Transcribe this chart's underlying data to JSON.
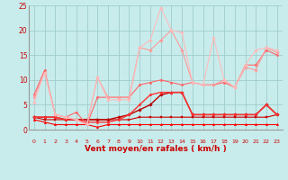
{
  "x": [
    0,
    1,
    2,
    3,
    4,
    5,
    6,
    7,
    8,
    9,
    10,
    11,
    12,
    13,
    14,
    15,
    16,
    17,
    18,
    19,
    20,
    21,
    22,
    23
  ],
  "series": [
    {
      "color": "#FF0000",
      "lw": 0.8,
      "marker": "^",
      "ms": 1.8,
      "values": [
        2,
        1.5,
        1,
        1,
        1,
        1,
        0.5,
        1,
        1,
        1,
        1,
        1,
        1,
        1,
        1,
        1,
        1,
        1,
        1,
        1,
        1,
        1,
        1,
        1
      ]
    },
    {
      "color": "#CC0000",
      "lw": 0.8,
      "marker": "s",
      "ms": 1.8,
      "values": [
        2.5,
        2,
        2,
        2,
        2,
        2,
        2,
        2,
        2,
        2,
        2.5,
        2.5,
        2.5,
        2.5,
        2.5,
        2.5,
        2.5,
        2.5,
        2.5,
        2.5,
        2.5,
        2.5,
        2.5,
        3
      ]
    },
    {
      "color": "#BB0000",
      "lw": 1.0,
      "marker": "D",
      "ms": 1.8,
      "values": [
        2.5,
        2.5,
        2.5,
        2,
        2,
        2,
        2,
        2,
        2.5,
        3,
        4,
        5,
        7,
        7.5,
        7.5,
        3,
        3,
        3,
        3,
        3,
        3,
        3,
        5,
        3
      ]
    },
    {
      "color": "#FF3333",
      "lw": 1.0,
      "marker": "o",
      "ms": 1.8,
      "values": [
        2.5,
        2.5,
        2.5,
        2,
        2,
        1.5,
        1.5,
        1.5,
        2,
        3,
        5,
        7,
        7.5,
        7.5,
        7.5,
        3,
        3,
        3,
        3,
        3,
        3,
        3,
        5,
        3
      ]
    },
    {
      "color": "#FF6666",
      "lw": 0.8,
      "marker": "o",
      "ms": 1.8,
      "values": [
        7,
        12,
        3,
        2.5,
        3.5,
        1,
        6.5,
        6.5,
        6.5,
        6.5,
        9,
        9.5,
        10,
        9.5,
        9,
        9.5,
        9,
        9,
        9.5,
        8.5,
        13,
        13,
        16,
        15
      ]
    },
    {
      "color": "#FF9999",
      "lw": 0.8,
      "marker": "D",
      "ms": 1.8,
      "values": [
        6.5,
        11.5,
        3,
        2.5,
        2,
        1,
        10.5,
        6.5,
        6.5,
        6.5,
        16.5,
        16,
        18,
        20,
        16,
        9.5,
        9,
        9,
        10,
        8.5,
        12.5,
        12,
        16.5,
        15.5
      ]
    },
    {
      "color": "#FFBBBB",
      "lw": 0.8,
      "marker": "D",
      "ms": 1.8,
      "values": [
        5.5,
        11.5,
        3,
        2.5,
        2,
        1,
        10.5,
        6,
        6,
        6,
        16.5,
        18,
        24.5,
        20,
        19.5,
        9.5,
        9,
        18.5,
        10,
        8.5,
        13,
        16,
        16.5,
        16
      ]
    }
  ],
  "xlabel": "Vent moyen/en rafales ( km/h )",
  "ylim": [
    0,
    25
  ],
  "xlim": [
    -0.5,
    23.5
  ],
  "yticks": [
    0,
    5,
    10,
    15,
    20,
    25
  ],
  "xticks": [
    0,
    1,
    2,
    3,
    4,
    5,
    6,
    7,
    8,
    9,
    10,
    11,
    12,
    13,
    14,
    15,
    16,
    17,
    18,
    19,
    20,
    21,
    22,
    23
  ],
  "bg_color": "#C8ECEC",
  "grid_color": "#A0CCCC",
  "label_color": "#CC0000",
  "arrows": [
    "→",
    "↗",
    "↘",
    "↘",
    "→",
    "↙",
    "↑",
    "↑",
    "↑",
    "↓",
    "↘",
    "↓",
    "↘",
    "↓",
    "↘",
    "↘",
    "↓",
    "↙",
    "↓",
    "↘",
    "↘",
    "↘",
    "↘",
    "↘"
  ]
}
